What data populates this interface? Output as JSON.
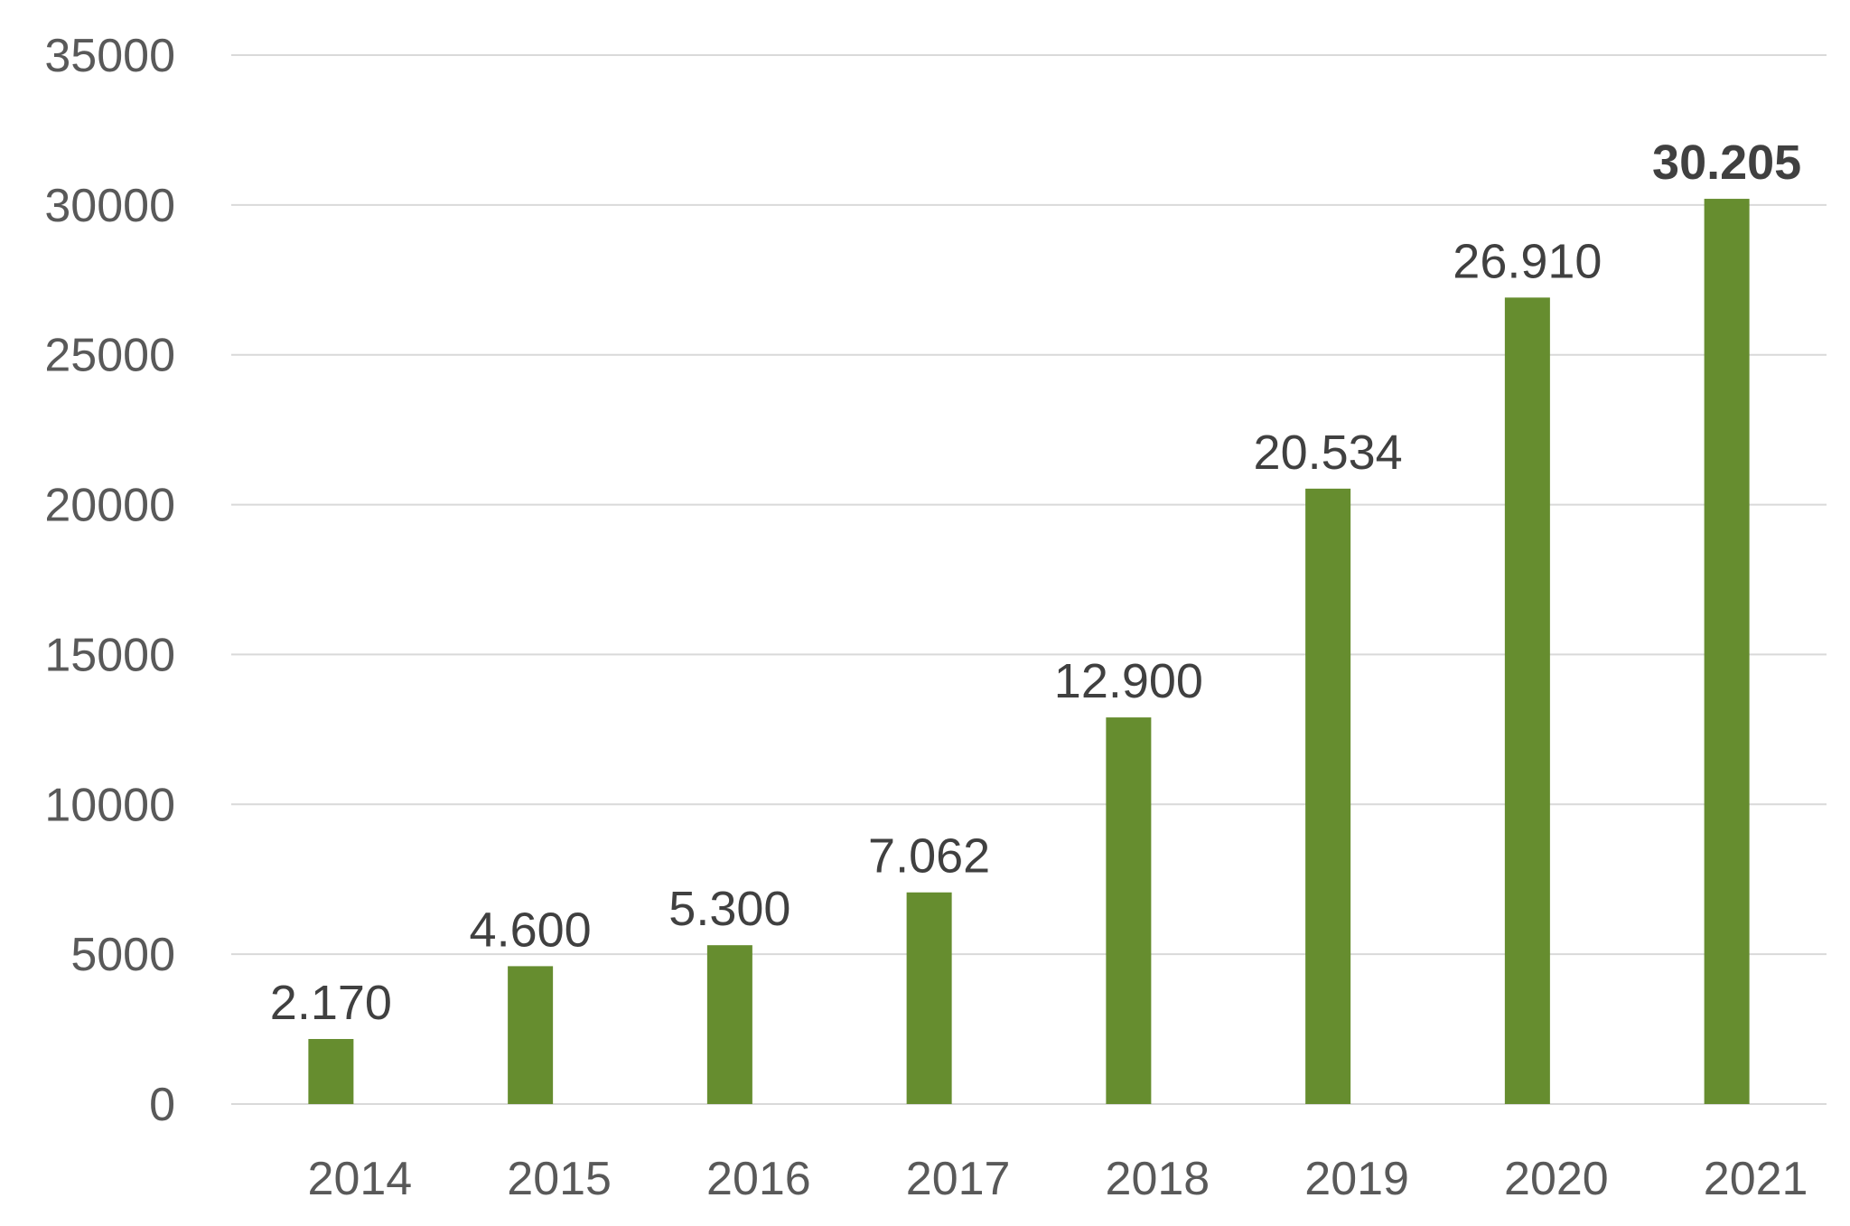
{
  "chart_data": {
    "type": "bar",
    "title": "",
    "xlabel": "",
    "ylabel": "",
    "categories": [
      "2014",
      "2015",
      "2016",
      "2017",
      "2018",
      "2019",
      "2020",
      "2021"
    ],
    "values": [
      2170,
      4600,
      5300,
      7062,
      12900,
      20534,
      26910,
      30205
    ],
    "data_labels": [
      "2.170",
      "4.600",
      "5.300",
      "7.062",
      "12.900",
      "20.534",
      "26.910",
      "30.205"
    ],
    "highlighted_label_index": 7,
    "ylim": [
      0,
      35000
    ],
    "yticks": [
      0,
      5000,
      10000,
      15000,
      20000,
      25000,
      30000,
      35000
    ],
    "ytick_labels": [
      "0",
      "5000",
      "10000",
      "15000",
      "20000",
      "25000",
      "30000",
      "35000"
    ],
    "grid": true,
    "legend": "none",
    "bar_color": "#668d2f",
    "label_color": "#404040",
    "tick_color": "#595959",
    "grid_color": "#d9d9d9"
  }
}
